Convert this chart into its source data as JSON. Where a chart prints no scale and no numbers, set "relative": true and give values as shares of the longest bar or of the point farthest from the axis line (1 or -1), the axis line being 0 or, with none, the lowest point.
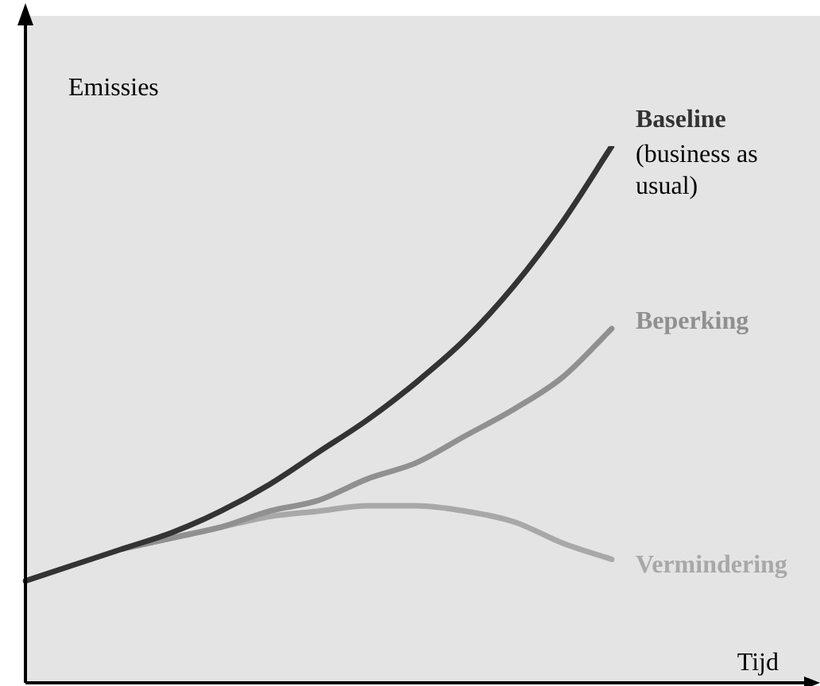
{
  "chart_data": {
    "type": "line",
    "relative": true,
    "xlabel": "Tijd",
    "ylabel": "Emissies",
    "legend": false,
    "categories": [
      null,
      null,
      null,
      null,
      null,
      null,
      null,
      null,
      null,
      null,
      null,
      null,
      null
    ],
    "series": [
      {
        "name": "Baseline",
        "color": "#333333",
        "values": [
          0.19,
          0.22,
          0.25,
          0.28,
          0.32,
          0.37,
          0.43,
          0.49,
          0.56,
          0.64,
          0.74,
          0.86,
          1
        ]
      },
      {
        "name": "Beperking",
        "color": "#909090",
        "values": [
          null,
          null,
          0.25,
          0.27,
          0.29,
          0.32,
          0.34,
          0.38,
          0.41,
          0.46,
          0.51,
          0.57,
          0.66
        ]
      },
      {
        "name": "Vermindering",
        "color": "#a8a8a8",
        "values": [
          null,
          null,
          0.25,
          0.27,
          0.29,
          0.31,
          0.32,
          0.33,
          0.33,
          0.32,
          0.3,
          0.26,
          0.23
        ]
      }
    ],
    "annotations": [
      "(business as usual)"
    ]
  }
}
